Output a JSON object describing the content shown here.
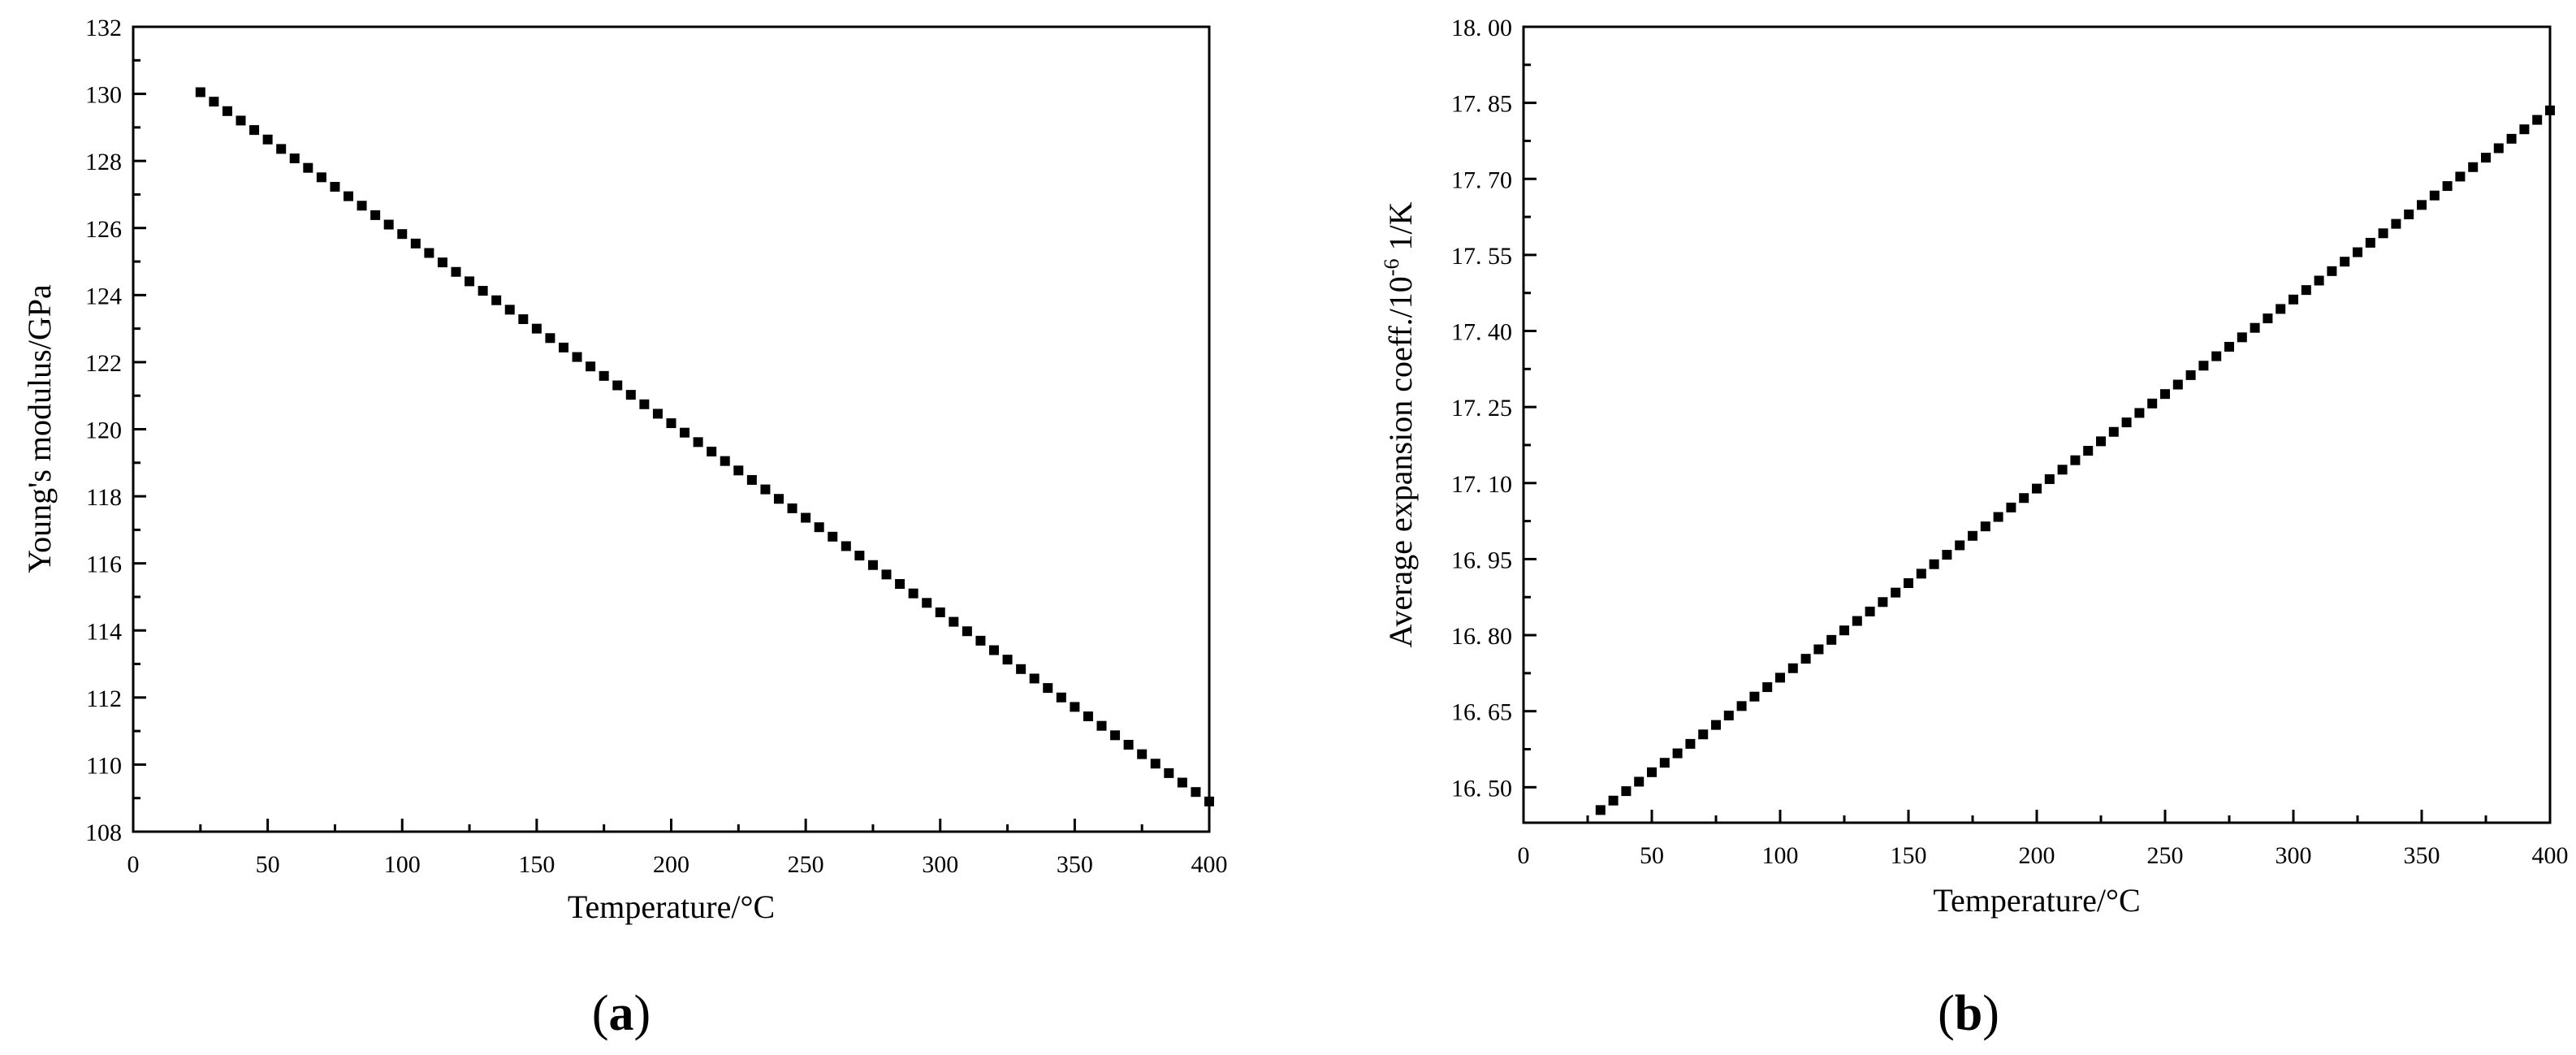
{
  "chart_data": [
    {
      "type": "scatter",
      "panel_label": {
        "open": "(",
        "letter": "a",
        "close": ")"
      },
      "xlabel": "Temperature/°C",
      "ylabel": "Young's modulus/GPa",
      "xlim": [
        0,
        400
      ],
      "ylim": [
        108,
        132
      ],
      "xticks": [
        0,
        50,
        100,
        150,
        200,
        250,
        300,
        350,
        400
      ],
      "yticks": [
        108,
        110,
        112,
        114,
        116,
        118,
        120,
        122,
        124,
        126,
        128,
        130,
        132
      ],
      "tick_decimals": 0,
      "grid": false,
      "series": [
        {
          "x_start": 25,
          "x_step": 5,
          "count": 76,
          "y_start": 130.05,
          "y_slope": -0.0564
        }
      ],
      "marker": "square",
      "color": "#000000"
    },
    {
      "type": "scatter",
      "panel_label": {
        "open": "(",
        "letter": "b",
        "close": ")"
      },
      "xlabel": "Temperature/°C",
      "ylabel_main": "Average expansion coeff./10",
      "ylabel_sup": "-6",
      "ylabel_tail": " 1/K",
      "xlim": [
        0,
        400
      ],
      "ylim": [
        16.43,
        18.0
      ],
      "xticks": [
        0,
        50,
        100,
        150,
        200,
        250,
        300,
        350,
        400
      ],
      "yticks": [
        16.5,
        16.65,
        16.8,
        16.95,
        17.1,
        17.25,
        17.4,
        17.55,
        17.7,
        17.85,
        18.0
      ],
      "tick_decimals": 2,
      "grid": false,
      "series": [
        {
          "x_start": 30,
          "x_step": 5,
          "count": 75,
          "y_start": 16.455,
          "y_slope": 0.00373
        }
      ],
      "marker": "square",
      "color": "#000000"
    }
  ]
}
